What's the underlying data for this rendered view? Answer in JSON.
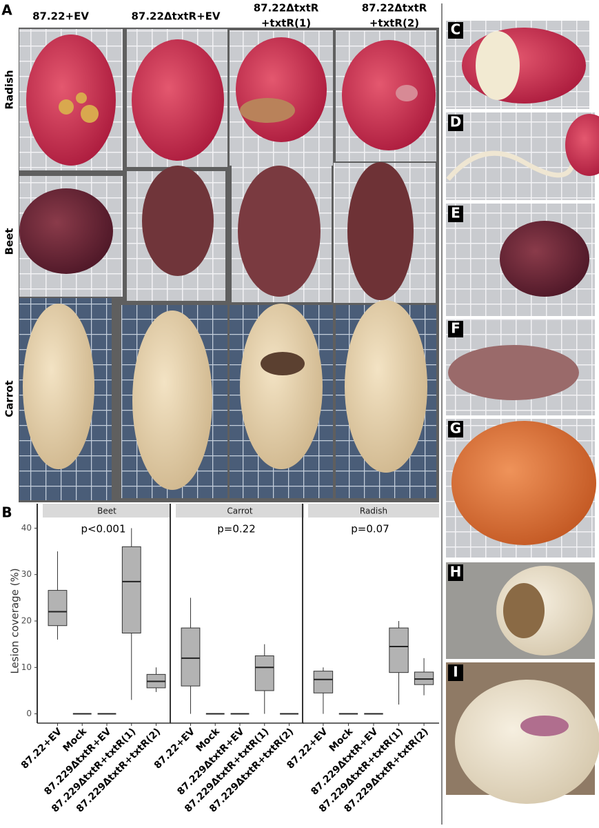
{
  "panel_labels": [
    "A",
    "B",
    "C",
    "D",
    "E",
    "F",
    "G",
    "H",
    "I"
  ],
  "panel_a": {
    "column_labels": [
      [
        "87.22+EV"
      ],
      [
        "87.22ΔtxtR+EV"
      ],
      [
        "87.22ΔtxtR",
        "+txtR(1)"
      ],
      [
        "87.22ΔtxtR",
        "+txtR(2)"
      ]
    ],
    "row_labels": [
      "Radish",
      "Beet",
      "Carrot"
    ]
  },
  "chart_data": [
    {
      "type": "box",
      "facet": "Beet",
      "annotation": "p<0.001",
      "y_label": "Lesion coverage (%)",
      "categories": [
        "87.22+EV",
        "Mock",
        "87.229ΔtxtR+EV",
        "87.229ΔtxtR+txtR(1)",
        "87.229ΔtxtR+txtR(2)"
      ],
      "boxes": [
        {
          "min": 16,
          "q1": 19,
          "median": 22,
          "q3": 26.6,
          "max": 35
        },
        {
          "min": 0,
          "q1": 0,
          "median": 0,
          "q3": 0,
          "max": 0
        },
        {
          "min": 0,
          "q1": 0,
          "median": 0,
          "q3": 0,
          "max": 0
        },
        {
          "min": 3,
          "q1": 17.4,
          "median": 28.5,
          "q3": 36,
          "max": 40
        },
        {
          "min": 4.7,
          "q1": 5.6,
          "median": 7,
          "q3": 8.5,
          "max": 10
        }
      ],
      "color": "#b3b3b3",
      "ylim": [
        -2,
        42
      ],
      "yticks": [
        0,
        10,
        20,
        30,
        40
      ]
    },
    {
      "type": "box",
      "facet": "Carrot",
      "annotation": "p=0.22",
      "categories": [
        "87.22+EV",
        "Mock",
        "87.229ΔtxtR+EV",
        "87.229ΔtxtR+txtR(1)",
        "87.229ΔtxtR+txtR(2)"
      ],
      "boxes": [
        {
          "min": 0,
          "q1": 6,
          "median": 12,
          "q3": 18.5,
          "max": 25
        },
        {
          "min": 0,
          "q1": 0,
          "median": 0,
          "q3": 0,
          "max": 0
        },
        {
          "min": 0,
          "q1": 0,
          "median": 0,
          "q3": 0,
          "max": 0
        },
        {
          "min": 0,
          "q1": 5,
          "median": 10,
          "q3": 12.5,
          "max": 15
        },
        {
          "min": 0,
          "q1": 0,
          "median": 0,
          "q3": 0,
          "max": 0
        }
      ],
      "color": "#b3b3b3",
      "ylim": [
        -2,
        42
      ]
    },
    {
      "type": "box",
      "facet": "Radish",
      "annotation": "p=0.07",
      "categories": [
        "87.22+EV",
        "Mock",
        "87.229ΔtxtR+EV",
        "87.229ΔtxtR+txtR(1)",
        "87.229ΔtxtR+txtR(2)"
      ],
      "boxes": [
        {
          "min": 0,
          "q1": 4.5,
          "median": 7.4,
          "q3": 9.2,
          "max": 10
        },
        {
          "min": 0,
          "q1": 0,
          "median": 0,
          "q3": 0,
          "max": 0
        },
        {
          "min": 0,
          "q1": 0,
          "median": 0,
          "q3": 0,
          "max": 0
        },
        {
          "min": 2,
          "q1": 8.9,
          "median": 14.5,
          "q3": 18.5,
          "max": 20
        },
        {
          "min": 4,
          "q1": 6.3,
          "median": 7.5,
          "q3": 9,
          "max": 12
        }
      ],
      "color": "#b3b3b3",
      "ylim": [
        -2,
        42
      ]
    }
  ]
}
